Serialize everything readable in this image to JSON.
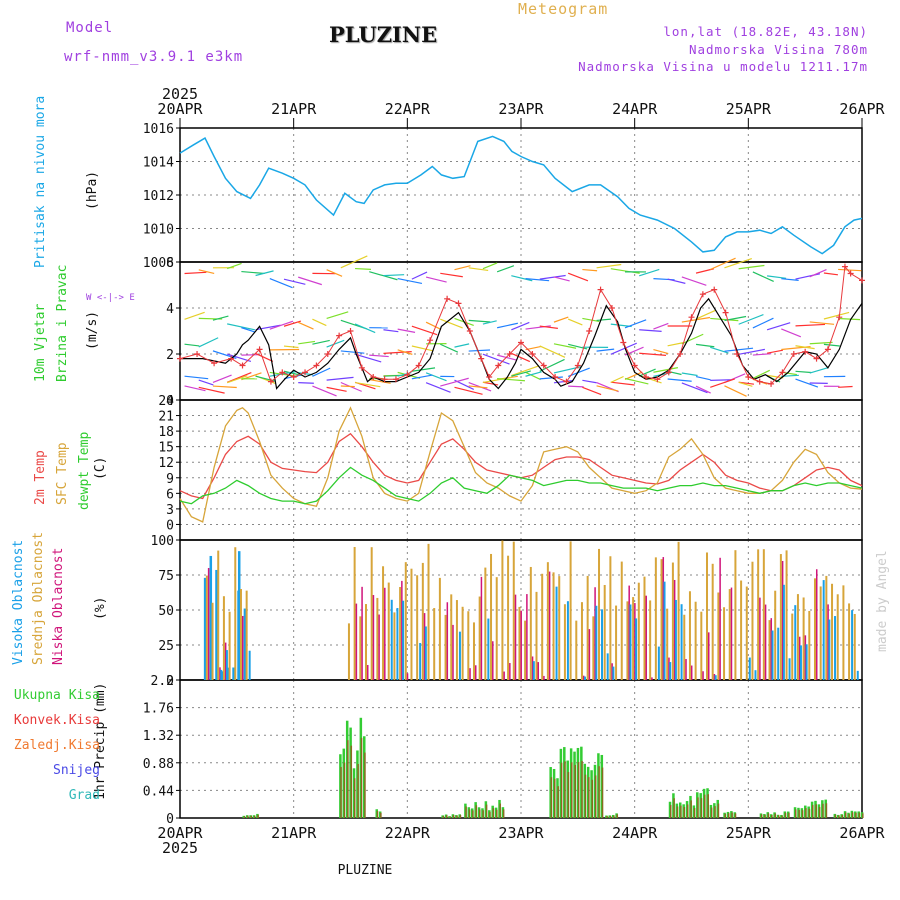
{
  "header": {
    "model_label": "Model",
    "model_name": "wrf-nmm_v3.9.1 e3km",
    "station": "PLUZINE",
    "meteogram": "Meteogram",
    "lonlat": "lon,lat (18.82E, 43.18N)",
    "altitude": "Nadmorska Visina 780m",
    "model_altitude": "Nadmorska Visina u modelu 1211.17m",
    "footer_station": "PLUZINE",
    "made_by": "made by Angel"
  },
  "colors": {
    "pressure": "#1aa7e6",
    "wind_speed": "#000000",
    "gust": "#e8393c",
    "temp2m": "#ea4a48",
    "sfc": "#d7a53a",
    "dewpt": "#2ecc2e",
    "high": "#1aa0e8",
    "mid": "#d7a53a",
    "low": "#d0147a",
    "total": "#33cc33",
    "conv": "#e83a3a",
    "snow": "#4a4ae6",
    "grad": "#30b8b8"
  },
  "chart_data": {
    "type": "line",
    "x_axis": {
      "year": "2025",
      "ticks": [
        "20APR",
        "21APR",
        "22APR",
        "23APR",
        "24APR",
        "25APR",
        "26APR"
      ],
      "range_days": [
        0,
        6
      ]
    },
    "panels": [
      {
        "id": "pressure",
        "title": "Pritisak na nivou mora",
        "unit": "(hPa)",
        "ylim": [
          1008,
          1016
        ],
        "yticks": [
          "1008",
          "1010",
          "1012",
          "1014",
          "1016"
        ],
        "series": [
          {
            "name": "Pritisak na nivou mora",
            "x": [
              0,
              0.12,
              0.22,
              0.3,
              0.4,
              0.5,
              0.62,
              0.7,
              0.78,
              0.9,
              1.0,
              1.1,
              1.2,
              1.35,
              1.45,
              1.55,
              1.62,
              1.7,
              1.8,
              1.9,
              2.0,
              2.12,
              2.22,
              2.3,
              2.4,
              2.5,
              2.62,
              2.75,
              2.85,
              2.92,
              3.0,
              3.1,
              3.2,
              3.3,
              3.45,
              3.6,
              3.7,
              3.85,
              3.95,
              4.05,
              4.2,
              4.35,
              4.5,
              4.6,
              4.7,
              4.8,
              4.9,
              5.0,
              5.1,
              5.2,
              5.3,
              5.4,
              5.55,
              5.65,
              5.75,
              5.85,
              5.93,
              6.0
            ],
            "values": [
              1014.5,
              1015.0,
              1015.4,
              1014.3,
              1013.0,
              1012.2,
              1011.8,
              1012.6,
              1013.6,
              1013.3,
              1013.0,
              1012.6,
              1011.7,
              1010.8,
              1012.1,
              1011.6,
              1011.5,
              1012.3,
              1012.6,
              1012.7,
              1012.7,
              1013.2,
              1013.7,
              1013.2,
              1013.0,
              1013.1,
              1015.2,
              1015.5,
              1015.2,
              1014.6,
              1014.3,
              1014.0,
              1013.8,
              1013.0,
              1012.2,
              1012.6,
              1012.6,
              1011.9,
              1011.2,
              1010.8,
              1010.5,
              1010.0,
              1009.2,
              1008.6,
              1008.7,
              1009.5,
              1009.8,
              1009.8,
              1009.9,
              1009.7,
              1010.1,
              1009.6,
              1008.9,
              1008.5,
              1009.0,
              1010.1,
              1010.5,
              1010.6
            ]
          }
        ]
      },
      {
        "id": "wind",
        "title": "10m Vjetar Brzina i Pravac",
        "unit": "(m/s)",
        "ylim": [
          0,
          6
        ],
        "yticks": [
          "0",
          "2",
          "4",
          "6"
        ],
        "compass": "W <-|-> E",
        "series": [
          {
            "name": "wind_speed",
            "x": [
              0,
              0.2,
              0.4,
              0.5,
              0.55,
              0.6,
              0.7,
              0.78,
              0.85,
              0.92,
              1.0,
              1.1,
              1.2,
              1.3,
              1.4,
              1.5,
              1.55,
              1.6,
              1.65,
              1.7,
              1.8,
              1.9,
              2.0,
              2.1,
              2.2,
              2.3,
              2.45,
              2.55,
              2.65,
              2.72,
              2.8,
              2.88,
              2.95,
              3.0,
              3.1,
              3.2,
              3.3,
              3.35,
              3.45,
              3.55,
              3.65,
              3.75,
              3.85,
              3.92,
              4.0,
              4.1,
              4.2,
              4.3,
              4.4,
              4.5,
              4.58,
              4.65,
              4.75,
              4.85,
              4.95,
              5.05,
              5.15,
              5.25,
              5.35,
              5.45,
              5.5,
              5.6,
              5.7,
              5.8,
              5.9,
              6.0
            ],
            "values": [
              1.8,
              1.8,
              1.6,
              2.0,
              2.4,
              2.6,
              3.2,
              2.4,
              0.5,
              0.9,
              1.3,
              1.0,
              1.2,
              1.6,
              2.2,
              2.7,
              2.0,
              1.4,
              0.8,
              1.0,
              0.8,
              0.8,
              1.0,
              1.2,
              1.8,
              3.2,
              3.8,
              3.0,
              1.8,
              0.9,
              0.5,
              1.0,
              1.6,
              2.2,
              1.8,
              1.2,
              0.9,
              0.6,
              0.8,
              1.6,
              2.8,
              4.1,
              3.4,
              2.2,
              1.2,
              0.9,
              1.0,
              1.3,
              2.0,
              2.9,
              4.0,
              4.4,
              3.6,
              2.8,
              1.5,
              0.9,
              1.1,
              0.8,
              1.2,
              1.8,
              2.1,
              2.0,
              1.4,
              2.2,
              3.5,
              4.2
            ]
          },
          {
            "name": "gust",
            "x": [
              0,
              0.15,
              0.3,
              0.45,
              0.55,
              0.7,
              0.8,
              0.9,
              1.0,
              1.1,
              1.2,
              1.3,
              1.4,
              1.5,
              1.6,
              1.7,
              1.8,
              1.9,
              2.0,
              2.1,
              2.2,
              2.35,
              2.45,
              2.55,
              2.65,
              2.72,
              2.8,
              2.9,
              3.0,
              3.1,
              3.2,
              3.3,
              3.4,
              3.5,
              3.6,
              3.7,
              3.8,
              3.9,
              4.0,
              4.1,
              4.2,
              4.3,
              4.4,
              4.5,
              4.6,
              4.7,
              4.8,
              4.9,
              5.0,
              5.1,
              5.2,
              5.3,
              5.4,
              5.5,
              5.6,
              5.7,
              5.8,
              5.85,
              5.9,
              6.0
            ],
            "values": [
              1.8,
              2.0,
              1.6,
              1.8,
              1.5,
              2.2,
              0.8,
              1.2,
              1.0,
              1.2,
              1.5,
              2.0,
              2.8,
              3.0,
              1.4,
              1.0,
              0.9,
              0.9,
              1.1,
              1.5,
              2.6,
              4.4,
              4.2,
              3.0,
              1.8,
              1.0,
              1.5,
              2.0,
              2.5,
              2.0,
              1.5,
              1.0,
              0.8,
              1.5,
              3.0,
              4.8,
              4.0,
              2.5,
              1.5,
              1.0,
              0.9,
              1.2,
              2.0,
              3.6,
              4.6,
              4.8,
              3.8,
              2.0,
              1.0,
              0.8,
              0.7,
              1.2,
              2.0,
              2.1,
              1.8,
              2.2,
              3.6,
              5.8,
              5.5,
              5.2
            ]
          }
        ]
      },
      {
        "id": "temp",
        "title": "2m Temp / SFC Temp / dewpt Temp",
        "unit": "(C)",
        "ylim": [
          -3,
          24
        ],
        "yticks": [
          "0",
          "3",
          "6",
          "9",
          "12",
          "15",
          "18",
          "21",
          "24"
        ],
        "series": [
          {
            "name": "2m Temp",
            "x": [
              0,
              0.1,
              0.2,
              0.3,
              0.4,
              0.5,
              0.6,
              0.7,
              0.8,
              0.9,
              1.0,
              1.1,
              1.2,
              1.3,
              1.4,
              1.5,
              1.6,
              1.7,
              1.8,
              1.9,
              2.0,
              2.1,
              2.2,
              2.3,
              2.4,
              2.5,
              2.6,
              2.7,
              2.8,
              2.9,
              3.0,
              3.1,
              3.2,
              3.3,
              3.4,
              3.5,
              3.6,
              3.7,
              3.8,
              3.9,
              4.0,
              4.1,
              4.2,
              4.3,
              4.4,
              4.5,
              4.6,
              4.7,
              4.8,
              4.9,
              5.0,
              5.1,
              5.2,
              5.3,
              5.4,
              5.5,
              5.6,
              5.7,
              5.8,
              5.9,
              6.0
            ],
            "values": [
              6.5,
              5.5,
              5.0,
              9.0,
              13.5,
              16.0,
              17.0,
              15.5,
              12.0,
              10.8,
              10.5,
              10.2,
              10.0,
              12.0,
              16.0,
              17.5,
              15.0,
              12.0,
              9.5,
              8.5,
              8.0,
              8.5,
              12.0,
              15.5,
              16.5,
              14.5,
              12.0,
              10.5,
              10.0,
              9.5,
              9.0,
              9.5,
              11.0,
              12.5,
              13.0,
              13.0,
              12.5,
              11.0,
              9.5,
              9.0,
              8.5,
              8.0,
              7.8,
              8.5,
              10.5,
              12.0,
              13.5,
              12.0,
              9.5,
              8.5,
              8.0,
              7.0,
              6.5,
              6.5,
              7.5,
              9.0,
              10.5,
              11.0,
              10.5,
              8.5,
              7.5
            ]
          },
          {
            "name": "SFC Temp",
            "x": [
              0,
              0.1,
              0.2,
              0.3,
              0.4,
              0.5,
              0.55,
              0.6,
              0.7,
              0.8,
              0.9,
              1.0,
              1.1,
              1.2,
              1.3,
              1.4,
              1.5,
              1.6,
              1.7,
              1.8,
              1.9,
              2.0,
              2.1,
              2.2,
              2.3,
              2.4,
              2.5,
              2.6,
              2.7,
              2.8,
              2.9,
              3.0,
              3.1,
              3.2,
              3.3,
              3.4,
              3.5,
              3.6,
              3.7,
              3.8,
              3.9,
              4.0,
              4.1,
              4.2,
              4.3,
              4.4,
              4.5,
              4.6,
              4.7,
              4.8,
              4.9,
              5.0,
              5.1,
              5.2,
              5.3,
              5.4,
              5.5,
              5.6,
              5.7,
              5.8,
              5.9,
              6.0
            ],
            "values": [
              5.0,
              1.5,
              0.5,
              11.0,
              19.0,
              22.0,
              22.5,
              21.5,
              16.0,
              9.5,
              7.0,
              5.0,
              4.0,
              3.5,
              9.0,
              18.0,
              22.5,
              17.0,
              9.0,
              6.0,
              5.0,
              4.5,
              6.0,
              14.0,
              21.5,
              20.0,
              15.0,
              10.0,
              8.0,
              7.0,
              5.5,
              4.5,
              7.5,
              14.0,
              14.5,
              15.0,
              14.0,
              11.0,
              9.0,
              7.0,
              6.5,
              6.0,
              6.5,
              8.0,
              13.0,
              14.5,
              16.5,
              13.5,
              9.0,
              7.0,
              6.5,
              6.0,
              6.0,
              6.5,
              8.5,
              12.0,
              14.5,
              13.5,
              10.0,
              8.0,
              7.0,
              6.8
            ]
          },
          {
            "name": "dewpt Temp",
            "x": [
              0,
              0.1,
              0.2,
              0.3,
              0.4,
              0.5,
              0.6,
              0.7,
              0.8,
              0.9,
              1.0,
              1.1,
              1.2,
              1.3,
              1.4,
              1.5,
              1.6,
              1.7,
              1.8,
              1.9,
              2.0,
              2.1,
              2.2,
              2.3,
              2.4,
              2.5,
              2.6,
              2.7,
              2.8,
              2.9,
              3.0,
              3.1,
              3.2,
              3.3,
              3.4,
              3.5,
              3.6,
              3.7,
              3.8,
              3.9,
              4.0,
              4.1,
              4.2,
              4.3,
              4.4,
              4.5,
              4.6,
              4.7,
              4.8,
              4.9,
              5.0,
              5.1,
              5.2,
              5.3,
              5.4,
              5.5,
              5.6,
              5.7,
              5.8,
              5.9,
              6.0
            ],
            "values": [
              4.5,
              4.0,
              5.5,
              6.0,
              7.0,
              8.5,
              7.5,
              6.0,
              5.0,
              4.5,
              4.5,
              4.0,
              4.5,
              6.5,
              9.0,
              11.0,
              9.5,
              8.5,
              7.0,
              5.5,
              5.0,
              4.5,
              6.0,
              8.0,
              9.0,
              7.0,
              6.5,
              6.0,
              7.5,
              9.5,
              9.0,
              8.5,
              7.5,
              8.0,
              8.5,
              8.5,
              8.0,
              8.0,
              7.5,
              7.0,
              7.0,
              7.0,
              6.5,
              7.0,
              7.5,
              7.5,
              8.0,
              7.5,
              7.5,
              7.0,
              6.5,
              6.0,
              6.5,
              6.5,
              7.5,
              8.0,
              7.5,
              8.0,
              8.0,
              7.5,
              7.0
            ]
          }
        ]
      },
      {
        "id": "cloud",
        "title": "Visoka Oblacnost / Srednja Oblacnost / Niska Oblacnost",
        "unit": "(%)",
        "ylim": [
          0,
          100
        ],
        "yticks": [
          "0",
          "25",
          "50",
          "75",
          "100"
        ],
        "series": []
      },
      {
        "id": "precip",
        "title": "1hr Precip (mm)",
        "ylim": [
          0,
          2.2
        ],
        "yticks": [
          "0",
          "0.44",
          "0.88",
          "1.32",
          "1.76",
          "2.2"
        ],
        "legend": [
          "Ukupna Kisa",
          "Konvek.Kisa",
          "Zaledj.Kisa",
          "Snijeg",
          "Grad"
        ],
        "series": []
      }
    ]
  }
}
